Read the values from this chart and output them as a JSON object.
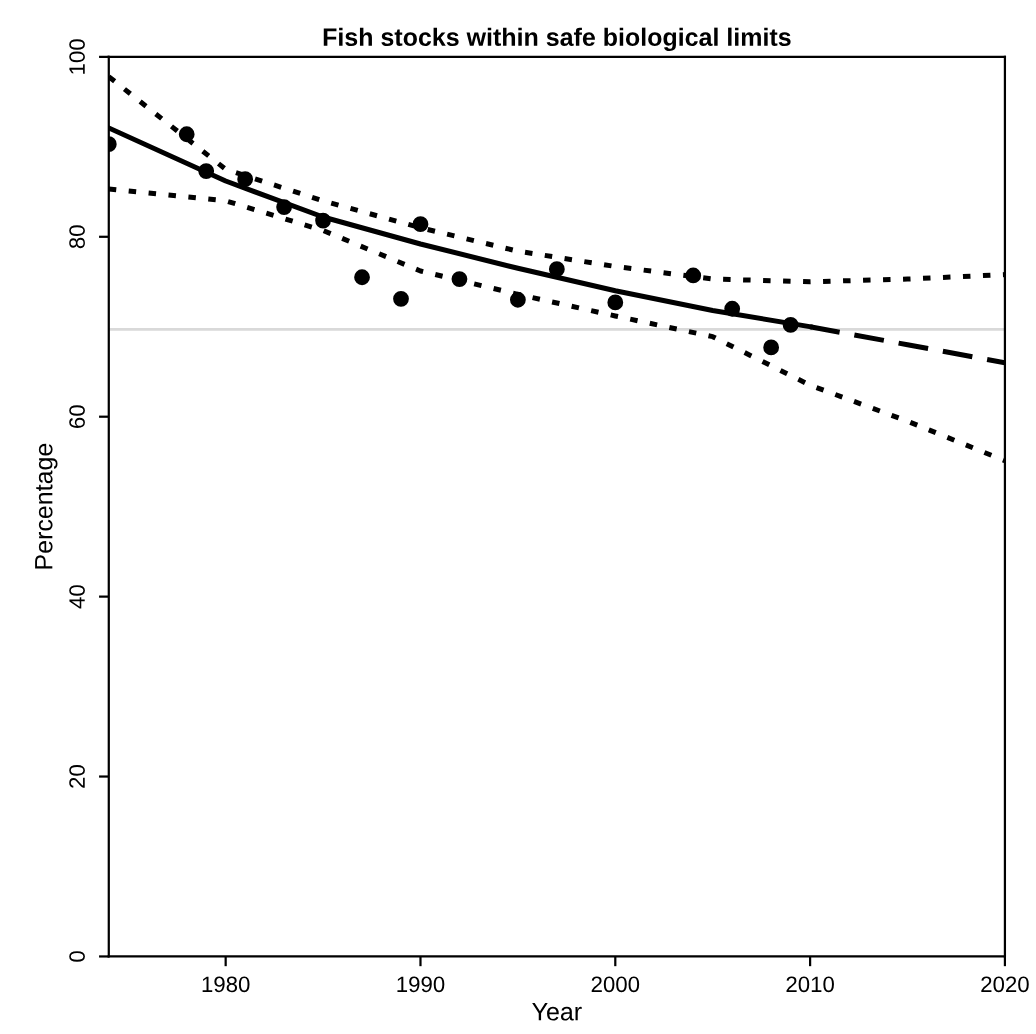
{
  "chart_data": {
    "type": "scatter",
    "title": "Fish stocks within safe biological limits",
    "xlabel": "Year",
    "ylabel": "Percentage",
    "xlim": [
      1974,
      2020
    ],
    "ylim": [
      0,
      100
    ],
    "xticks": [
      1980,
      1990,
      2000,
      2010,
      2020
    ],
    "yticks": [
      0,
      20,
      40,
      60,
      80,
      100
    ],
    "grid": false,
    "legend": false,
    "ref_lines": [
      {
        "axis": "y",
        "value": 69.7,
        "color": "#d9d9d9",
        "line_style": "solid"
      }
    ],
    "series": [
      {
        "marker": "circle",
        "color": "#000000",
        "x": [
          1974,
          1978,
          1979,
          1981,
          1983,
          1985,
          1987,
          1989,
          1990,
          1992,
          1995,
          1997,
          2000,
          2004,
          2006,
          2008,
          2009
        ],
        "values": [
          90.3,
          91.4,
          87.3,
          86.4,
          83.3,
          81.8,
          75.5,
          73.1,
          81.4,
          75.3,
          73.0,
          76.4,
          72.7,
          75.7,
          72.0,
          67.7,
          70.2
        ]
      },
      {
        "type": "line",
        "line_style": "solid",
        "color": "#000000",
        "x": [
          1974,
          1980,
          1985,
          1990,
          1995,
          2000,
          2005,
          2010
        ],
        "values": [
          92.1,
          86.2,
          82.2,
          79.2,
          76.5,
          74.0,
          71.8,
          70.0
        ]
      },
      {
        "type": "line",
        "line_style": "dashed",
        "color": "#000000",
        "x": [
          2010,
          2015,
          2020
        ],
        "values": [
          70.0,
          68.0,
          66.0
        ]
      },
      {
        "type": "line",
        "line_style": "dotted",
        "color": "#000000",
        "x": [
          1974,
          1980,
          1985,
          1990,
          1995,
          2000,
          2005,
          2010,
          2015,
          2020
        ],
        "values": [
          97.8,
          87.5,
          84.0,
          81.0,
          78.4,
          76.7,
          75.3,
          75.0,
          75.3,
          75.8
        ]
      },
      {
        "type": "line",
        "line_style": "dotted",
        "color": "#000000",
        "x": [
          1974,
          1980,
          1985,
          1990,
          1995,
          2000,
          2005,
          2010,
          2015,
          2020
        ],
        "values": [
          85.3,
          84.0,
          80.7,
          76.2,
          73.6,
          71.2,
          68.9,
          63.5,
          59.5,
          55.1
        ]
      }
    ]
  }
}
